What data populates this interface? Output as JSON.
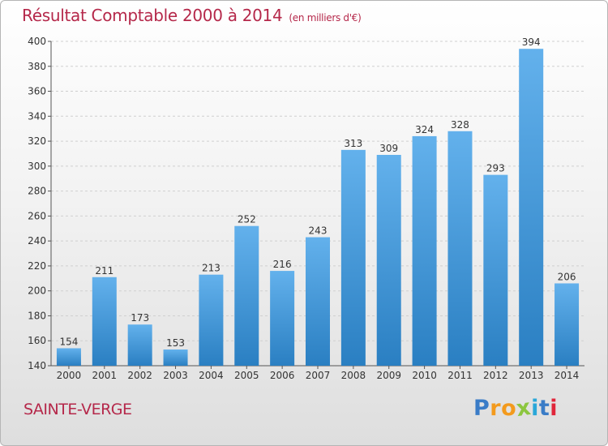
{
  "title": "Résultat Comptable 2000 à 2014",
  "unit_note": "(en milliers d'€)",
  "commune": "SAINTE-VERGE",
  "logo": {
    "letters": [
      "P",
      "r",
      "o",
      "x",
      "i",
      "t",
      "i"
    ],
    "colors": [
      "#3a7cc7",
      "#f39a1d",
      "#f39a1d",
      "#8cc63f",
      "#2aa7d8",
      "#3a7cc7",
      "#e0263b"
    ]
  },
  "colors": {
    "accent": "#b5284a",
    "bar_top": "#63b1ec",
    "bar_bottom": "#2a7fc2"
  },
  "chart_data": {
    "type": "bar",
    "categories": [
      "2000",
      "2001",
      "2002",
      "2003",
      "2004",
      "2005",
      "2006",
      "2007",
      "2008",
      "2009",
      "2010",
      "2011",
      "2012",
      "2013",
      "2014"
    ],
    "values": [
      154,
      211,
      173,
      153,
      213,
      252,
      216,
      243,
      313,
      309,
      324,
      328,
      293,
      394,
      206
    ],
    "ylim": [
      140,
      400
    ],
    "yticks": [
      140,
      160,
      180,
      200,
      220,
      240,
      260,
      280,
      300,
      320,
      340,
      360,
      380,
      400
    ],
    "grid": true,
    "xlabel": "",
    "ylabel": ""
  }
}
